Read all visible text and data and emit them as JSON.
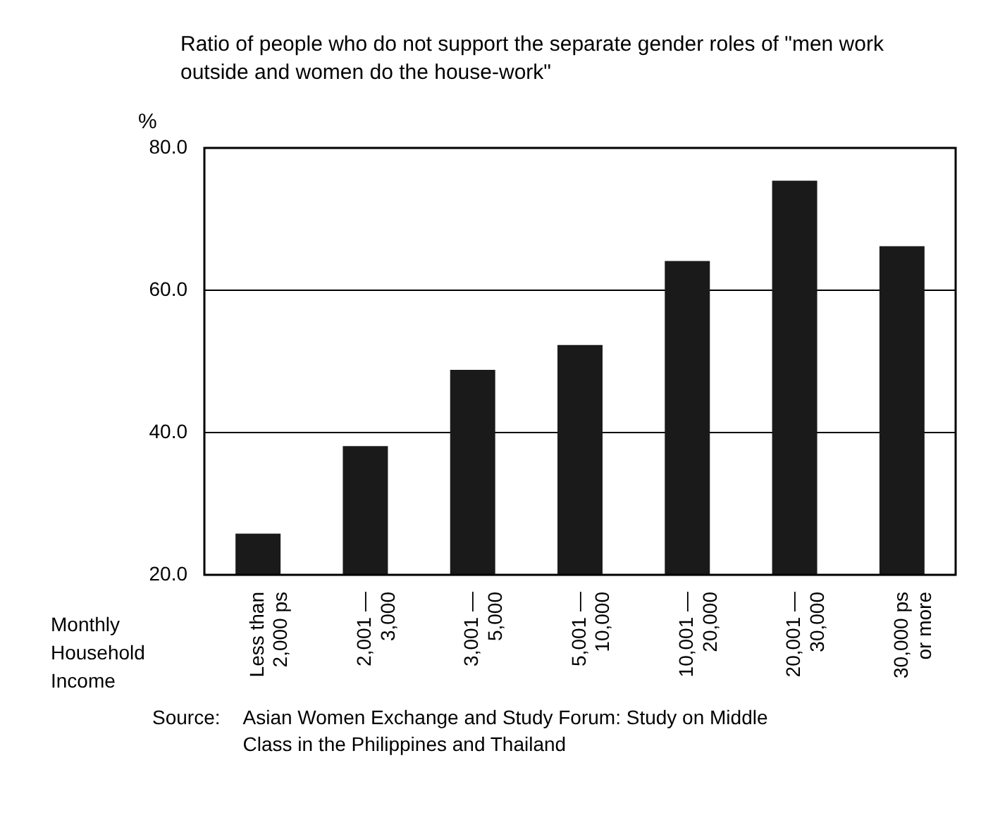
{
  "chart_data": {
    "type": "bar",
    "title": "Ratio of people who do not support the separate gender roles of \"men work outside and women do the house-work\"",
    "ylabel": "%",
    "xlabel": "Monthly Household Income",
    "categories": [
      "Less than\n2,000 ps",
      "2,001 —\n3,000",
      "3,001 —\n5,000",
      "5,001 —\n10,000",
      "10,001 —\n20,000",
      "20,001 —\n30,000",
      "30,000 ps\nor more"
    ],
    "values": [
      25.8,
      38.1,
      48.8,
      52.3,
      64.1,
      75.4,
      66.2
    ],
    "color": "#1a1a1a",
    "ylim": [
      20,
      80
    ],
    "yticks": [
      {
        "value": 20,
        "label": "20.0"
      },
      {
        "value": 40,
        "label": "40.0"
      },
      {
        "value": 60,
        "label": "60.0"
      },
      {
        "value": 80,
        "label": "80.0"
      }
    ],
    "grid": "y",
    "legend": false,
    "annotations": [
      "Source:",
      "Asian Women Exchange and Study Forum: Study on Middle Class in the Philippines and Thailand"
    ]
  }
}
